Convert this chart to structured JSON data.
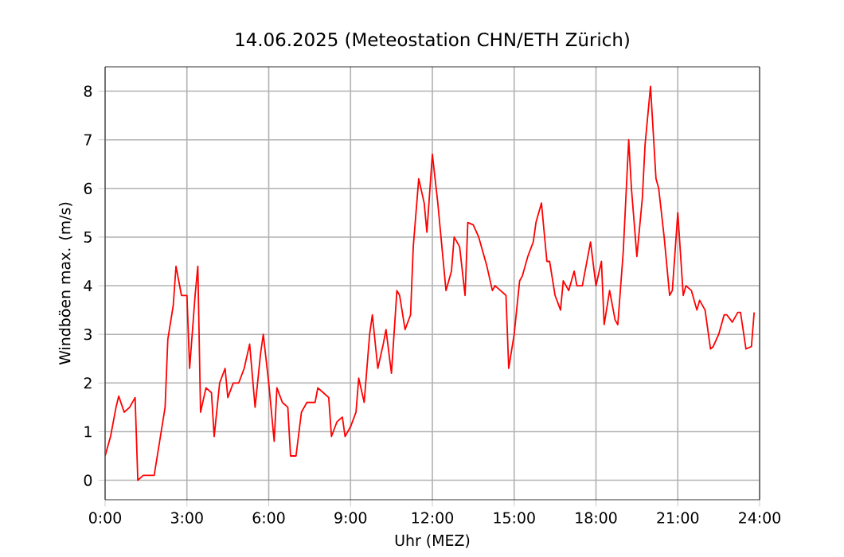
{
  "chart_data": {
    "type": "line",
    "title": "14.06.2025  (Meteostation CHN/ETH Zürich)",
    "xlabel": "Uhr (MEZ)",
    "ylabel": "Windböen max. (m/s)",
    "xlim": [
      0,
      24
    ],
    "ylim": [
      -0.4,
      8.5
    ],
    "xticks": [
      {
        "value": 0,
        "label": "0:00"
      },
      {
        "value": 3,
        "label": "3:00"
      },
      {
        "value": 6,
        "label": "6:00"
      },
      {
        "value": 9,
        "label": "9:00"
      },
      {
        "value": 12,
        "label": "12:00"
      },
      {
        "value": 15,
        "label": "15:00"
      },
      {
        "value": 18,
        "label": "18:00"
      },
      {
        "value": 21,
        "label": "21:00"
      },
      {
        "value": 24,
        "label": "24:00"
      }
    ],
    "yticks": [
      0,
      1,
      2,
      3,
      4,
      5,
      6,
      7,
      8
    ],
    "grid": true,
    "series": [
      {
        "color": "#ff0000",
        "x": [
          0,
          0.2,
          0.4,
          0.5,
          0.7,
          0.9,
          1.1,
          1.2,
          1.4,
          1.6,
          1.8,
          2.0,
          2.2,
          2.3,
          2.5,
          2.6,
          2.8,
          3.0,
          3.1,
          3.3,
          3.4,
          3.5,
          3.7,
          3.9,
          4.0,
          4.2,
          4.4,
          4.5,
          4.7,
          4.9,
          5.1,
          5.3,
          5.5,
          5.7,
          5.8,
          6.0,
          6.2,
          6.3,
          6.5,
          6.7,
          6.8,
          7.0,
          7.2,
          7.4,
          7.7,
          7.8,
          8.0,
          8.2,
          8.3,
          8.5,
          8.7,
          8.8,
          9.0,
          9.2,
          9.3,
          9.5,
          9.7,
          9.8,
          10.0,
          10.2,
          10.3,
          10.5,
          10.7,
          10.8,
          11.0,
          11.2,
          11.3,
          11.5,
          11.7,
          11.8,
          12.0,
          12.2,
          12.3,
          12.5,
          12.7,
          12.8,
          13.0,
          13.2,
          13.3,
          13.5,
          13.7,
          13.8,
          14.0,
          14.2,
          14.3,
          14.5,
          14.7,
          14.8,
          15.0,
          15.2,
          15.3,
          15.5,
          15.7,
          15.8,
          16.0,
          16.2,
          16.3,
          16.5,
          16.7,
          16.8,
          17.0,
          17.2,
          17.3,
          17.5,
          17.7,
          17.8,
          18.0,
          18.2,
          18.3,
          18.5,
          18.7,
          18.8,
          19.0,
          19.2,
          19.3,
          19.5,
          19.7,
          19.8,
          20.0,
          20.2,
          20.3,
          20.5,
          20.7,
          20.8,
          21.0,
          21.2,
          21.3,
          21.5,
          21.7,
          21.8,
          22.0,
          22.2,
          22.3,
          22.5,
          22.7,
          22.8,
          23.0,
          23.2,
          23.3,
          23.5,
          23.7,
          23.8
        ],
        "values": [
          0.5,
          0.9,
          1.5,
          1.73,
          1.4,
          1.5,
          1.7,
          0.0,
          0.1,
          0.1,
          0.1,
          0.8,
          1.5,
          2.9,
          3.6,
          4.4,
          3.8,
          3.8,
          2.3,
          3.8,
          4.4,
          1.4,
          1.9,
          1.8,
          0.9,
          2.0,
          2.3,
          1.7,
          2.0,
          2.0,
          2.3,
          2.8,
          1.5,
          2.6,
          3.0,
          2.0,
          0.8,
          1.9,
          1.6,
          1.5,
          0.5,
          0.5,
          1.4,
          1.6,
          1.6,
          1.9,
          1.8,
          1.7,
          0.9,
          1.2,
          1.3,
          0.9,
          1.1,
          1.4,
          2.1,
          1.6,
          3.0,
          3.4,
          2.3,
          2.8,
          3.1,
          2.2,
          3.9,
          3.8,
          3.1,
          3.4,
          4.8,
          6.2,
          5.7,
          5.1,
          6.7,
          5.7,
          5.1,
          3.9,
          4.3,
          5.0,
          4.8,
          3.8,
          5.3,
          5.25,
          5.0,
          4.8,
          4.4,
          3.9,
          4.0,
          3.9,
          3.8,
          2.3,
          3.0,
          4.1,
          4.2,
          4.6,
          4.9,
          5.3,
          5.7,
          4.5,
          4.5,
          3.8,
          3.5,
          4.1,
          3.9,
          4.3,
          4.0,
          4.0,
          4.6,
          4.9,
          4.0,
          4.5,
          3.2,
          3.9,
          3.3,
          3.2,
          4.7,
          7.0,
          6.0,
          4.6,
          5.8,
          6.9,
          8.1,
          6.2,
          6.0,
          5.0,
          3.8,
          3.9,
          5.5,
          3.8,
          4.0,
          3.9,
          3.5,
          3.7,
          3.5,
          2.7,
          2.75,
          3.0,
          3.4,
          3.4,
          3.25,
          3.45,
          3.45,
          2.7,
          2.75,
          3.45
        ]
      }
    ]
  }
}
